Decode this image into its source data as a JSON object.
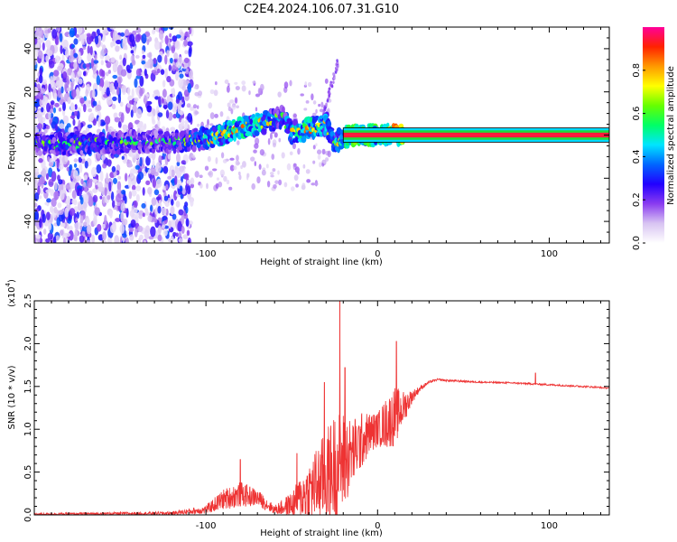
{
  "title": "C2E4.2024.106.07.31.G10",
  "chart_data": [
    {
      "type": "heatmap",
      "name": "spectrogram",
      "xlabel": "Height of straight line (km)",
      "ylabel": "Frequency (Hz)",
      "xlim": [
        -200,
        135
      ],
      "ylim": [
        -50,
        50
      ],
      "xticks": [
        -100,
        0,
        100
      ],
      "yticks": [
        -40,
        -20,
        0,
        20,
        40
      ],
      "colorbar": {
        "label": "Normalized spectral amplitude",
        "range": [
          0,
          1
        ],
        "ticks": [
          0.0,
          0.2,
          0.4,
          0.6,
          0.8
        ],
        "colors": [
          "#ffffff",
          "#d8c4f2",
          "#8a3cf0",
          "#2200ff",
          "#0066ff",
          "#00e5ff",
          "#00ff66",
          "#66ff00",
          "#ffff00",
          "#ff9900",
          "#ff2200",
          "#ff0099"
        ]
      },
      "centerline": [
        {
          "x": -200,
          "y": -4,
          "a": 0.3
        },
        {
          "x": -170,
          "y": -4,
          "a": 0.35
        },
        {
          "x": -140,
          "y": -3,
          "a": 0.3
        },
        {
          "x": -120,
          "y": -3,
          "a": 0.3
        },
        {
          "x": -105,
          "y": -2,
          "a": 0.4
        },
        {
          "x": -95,
          "y": -1,
          "a": 0.5
        },
        {
          "x": -85,
          "y": 2,
          "a": 0.55
        },
        {
          "x": -75,
          "y": 4,
          "a": 0.55
        },
        {
          "x": -65,
          "y": 6,
          "a": 0.45
        },
        {
          "x": -55,
          "y": 8,
          "a": 0.35
        },
        {
          "x": -50,
          "y": 1,
          "a": 0.5
        },
        {
          "x": -40,
          "y": 3,
          "a": 0.55
        },
        {
          "x": -30,
          "y": 5,
          "a": 0.45
        },
        {
          "x": -25,
          "y": -3,
          "a": 0.4
        },
        {
          "x": -15,
          "y": 0,
          "a": 0.7
        },
        {
          "x": 0,
          "y": 0,
          "a": 0.6
        },
        {
          "x": 10,
          "y": 0,
          "a": 0.85
        },
        {
          "x": 135,
          "y": 0,
          "a": 0.95
        }
      ]
    },
    {
      "type": "line",
      "name": "snr",
      "xlabel": "Height of straight line (km)",
      "ylabel": "SNR (10 * v/v)",
      "multiplier": "(x10",
      "multiplier_exp": "4",
      "multiplier_close": ")",
      "xlim": [
        -200,
        135
      ],
      "ylim": [
        0,
        2.5
      ],
      "xticks": [
        -100,
        0,
        100
      ],
      "yticks": [
        0.0,
        0.5,
        1.0,
        1.5,
        2.0,
        2.5
      ],
      "line_color": "#ee3333",
      "envelope_x": [
        -200,
        -120,
        -100,
        -90,
        -80,
        -70,
        -60,
        -50,
        -40,
        -30,
        -25,
        -20,
        -15,
        -10,
        -5,
        0,
        5,
        10,
        15,
        20,
        25,
        30,
        35,
        40,
        60,
        80,
        90,
        100,
        120,
        135
      ],
      "envelope_mean": [
        0.01,
        0.02,
        0.06,
        0.18,
        0.24,
        0.2,
        0.06,
        0.12,
        0.28,
        0.45,
        0.55,
        0.62,
        0.72,
        0.85,
        0.95,
        1.0,
        1.07,
        1.15,
        1.25,
        1.38,
        1.48,
        1.55,
        1.58,
        1.57,
        1.55,
        1.54,
        1.53,
        1.52,
        1.5,
        1.48
      ],
      "envelope_noise": [
        0.01,
        0.02,
        0.05,
        0.12,
        0.15,
        0.1,
        0.05,
        0.15,
        0.35,
        0.55,
        0.65,
        0.6,
        0.4,
        0.35,
        0.25,
        0.2,
        0.3,
        0.35,
        0.2,
        0.08,
        0.03,
        0.015,
        0.012,
        0.012,
        0.01,
        0.01,
        0.01,
        0.01,
        0.01,
        0.01
      ],
      "spikes": [
        {
          "x": -80,
          "y": 0.65
        },
        {
          "x": -47,
          "y": 0.72
        },
        {
          "x": -31,
          "y": 1.55
        },
        {
          "x": -22,
          "y": 2.5
        },
        {
          "x": -19,
          "y": 1.72
        },
        {
          "x": 11,
          "y": 2.03
        },
        {
          "x": 92,
          "y": 1.66
        }
      ]
    }
  ]
}
